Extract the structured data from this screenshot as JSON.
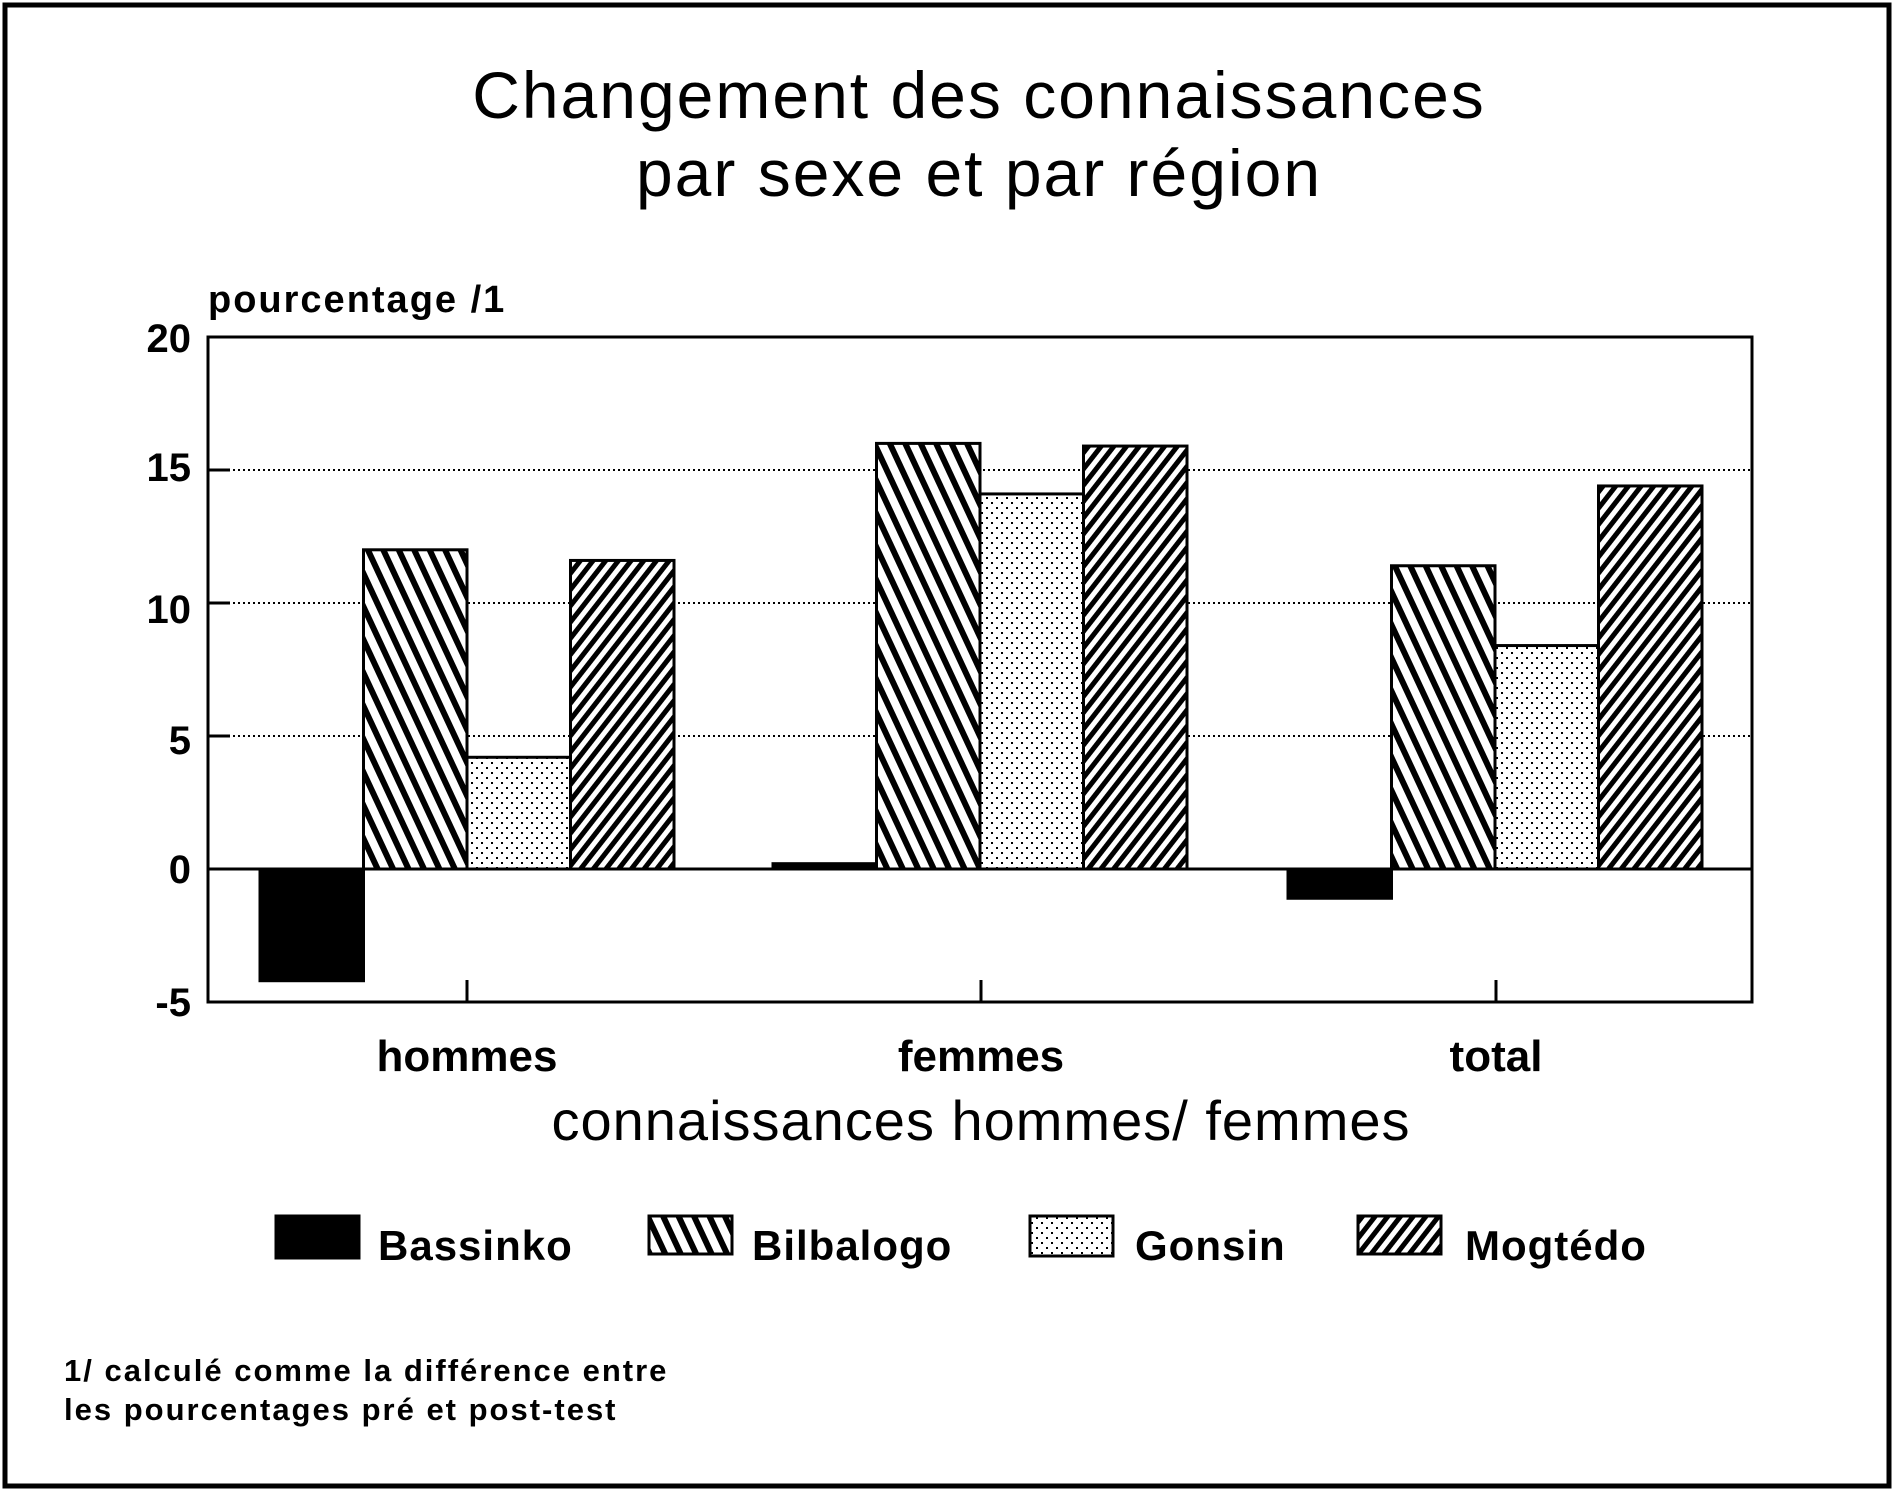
{
  "title": {
    "line1": "Changement des connaissances",
    "line2": "par sexe et par région"
  },
  "y_axis": {
    "label": "pourcentage /1",
    "ticks": [
      "20",
      "15",
      "10",
      "5",
      "0",
      "-5"
    ]
  },
  "x_axis": {
    "title": "connaissances hommes/ femmes",
    "categories": [
      "hommes",
      "femmes",
      "total"
    ]
  },
  "legend": {
    "items": [
      {
        "label": "Bassinko",
        "pattern": "solid-black"
      },
      {
        "label": "Bilbalogo",
        "pattern": "backslash-hatch"
      },
      {
        "label": "Gonsin",
        "pattern": "dot-stipple"
      },
      {
        "label": "Mogtédo",
        "pattern": "forward-slash-hatch"
      }
    ]
  },
  "footnote": {
    "line1": "1/ calculé comme la différence entre",
    "line2": "les pourcentages pré et post-test"
  },
  "chart_data": {
    "type": "bar",
    "title": "Changement des connaissances par sexe et par région",
    "xlabel": "connaissances hommes/ femmes",
    "ylabel": "pourcentage /1",
    "categories": [
      "hommes",
      "femmes",
      "total"
    ],
    "series": [
      {
        "name": "Bassinko",
        "values": [
          -4.2,
          0.2,
          -1.1
        ]
      },
      {
        "name": "Bilbalogo",
        "values": [
          12.0,
          16.0,
          11.4
        ]
      },
      {
        "name": "Gonsin",
        "values": [
          4.2,
          14.1,
          8.4
        ]
      },
      {
        "name": "Mogtédo",
        "values": [
          11.6,
          15.9,
          14.4
        ]
      }
    ],
    "ylim": [
      -5,
      20
    ],
    "yticks": [
      -5,
      0,
      5,
      10,
      15,
      20
    ],
    "grid": "horizontal dotted at 5, 10, 15",
    "legend_position": "bottom",
    "footnote": "1/ calculé comme la différence entre les pourcentages pré et post-test"
  }
}
